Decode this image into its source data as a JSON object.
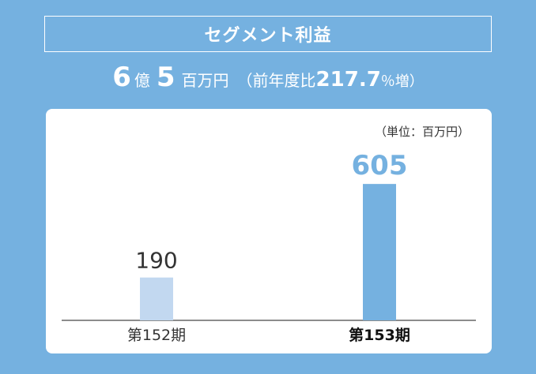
{
  "title": "セグメント利益",
  "headline": {
    "oku_value": "6",
    "oku_unit": "億",
    "man_value": "5",
    "man_unit": "百万円",
    "compare_prefix": "（前年度比",
    "compare_value": "217.7",
    "compare_unit": "％増）"
  },
  "chart_data": {
    "type": "bar",
    "unit_label": "（単位：百万円）",
    "categories": [
      "第152期",
      "第153期"
    ],
    "values": [
      190,
      605
    ],
    "value_labels": [
      "190",
      "605"
    ],
    "ylim": [
      0,
      700
    ],
    "grid": false,
    "colors": {
      "bar_previous": "#c2d8f0",
      "bar_current": "#75b1e0",
      "label_previous": "#333333",
      "label_current": "#75b1e0",
      "axis": "#666666"
    }
  }
}
